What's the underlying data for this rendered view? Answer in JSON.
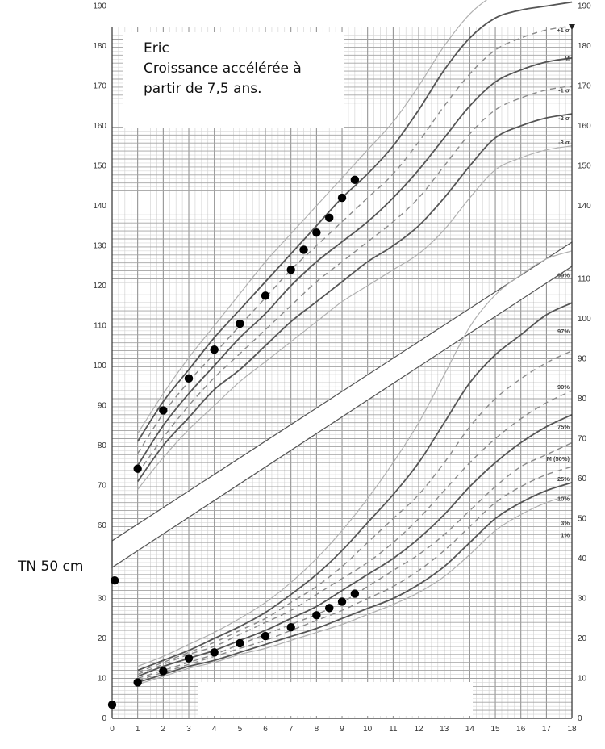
{
  "annotations": {
    "patient_name": "Eric",
    "note_line1": "Croissance accélérée à",
    "note_line2": "partir de 7,5 ans.",
    "birth_length": "TN 50 cm"
  },
  "chart_data": [
    {
      "type": "line",
      "panel": "height",
      "x_ticks": [
        "0",
        "1",
        "2",
        "3",
        "4",
        "5",
        "6",
        "7",
        "8",
        "9",
        "10",
        "11",
        "12",
        "13",
        "14",
        "15",
        "16",
        "17",
        "18"
      ],
      "y_ticks": [
        "60",
        "70",
        "80",
        "90",
        "100",
        "110",
        "120",
        "130",
        "140",
        "150",
        "160",
        "170",
        "180",
        "190"
      ],
      "ylim": [
        60,
        195
      ],
      "xlim": [
        0,
        18
      ],
      "grid": true,
      "curve_labels": [
        "+2 σ",
        "+1 σ",
        "M",
        "-1 σ",
        "-2 σ",
        "-3 σ"
      ],
      "reference_x": [
        1,
        2,
        3,
        4,
        5,
        6,
        7,
        8,
        9,
        10,
        11,
        12,
        13,
        14,
        15,
        16,
        17,
        18
      ],
      "series": [
        {
          "name": "+3 σ",
          "values": [
            83,
            93,
            102,
            110,
            118,
            126,
            133,
            140,
            147,
            154,
            161,
            170,
            180,
            188,
            193,
            196,
            198,
            199
          ]
        },
        {
          "name": "+2 σ",
          "values": [
            81,
            91,
            99,
            107,
            114,
            121,
            128,
            135,
            142,
            148,
            155,
            164,
            174,
            182,
            187,
            189,
            190,
            191
          ]
        },
        {
          "name": "+1 σ",
          "values": [
            78,
            88,
            96,
            103,
            110,
            117,
            124,
            130,
            136,
            142,
            148,
            156,
            165,
            173,
            179,
            182,
            184,
            185
          ]
        },
        {
          "name": "M",
          "values": [
            75,
            85,
            93,
            100,
            107,
            113,
            120,
            126,
            131,
            136,
            142,
            149,
            157,
            165,
            171,
            174,
            176,
            177
          ]
        },
        {
          "name": "-1 σ",
          "values": [
            73,
            82,
            90,
            97,
            103,
            109,
            115,
            121,
            126,
            131,
            136,
            142,
            150,
            158,
            164,
            167,
            169,
            170
          ]
        },
        {
          "name": "-2 σ",
          "values": [
            71,
            80,
            87,
            94,
            99,
            105,
            111,
            116,
            121,
            126,
            130,
            135,
            142,
            150,
            157,
            160,
            162,
            163
          ]
        },
        {
          "name": "-3 σ",
          "values": [
            69,
            77,
            84,
            90,
            96,
            101,
            106,
            111,
            116,
            120,
            124,
            128,
            134,
            142,
            149,
            152,
            154,
            155
          ]
        }
      ],
      "points": {
        "x": [
          1,
          2,
          3,
          4,
          5,
          6,
          7,
          7.5,
          8,
          8.5,
          9,
          9.5
        ],
        "y": [
          74.2,
          88.8,
          96.8,
          104,
          110.5,
          117.5,
          124,
          129,
          133.3,
          137,
          142,
          146.5
        ]
      }
    },
    {
      "type": "line",
      "panel": "weight",
      "x_ticks": [
        "0",
        "1",
        "2",
        "3",
        "4",
        "5",
        "6",
        "7",
        "8",
        "9",
        "10",
        "11",
        "12",
        "13",
        "14",
        "15",
        "16",
        "17",
        "18"
      ],
      "y_ticks_left": [
        "0",
        "10",
        "20",
        "30"
      ],
      "y_ticks_right": [
        "0",
        "10",
        "20",
        "30",
        "40",
        "50",
        "60",
        "70",
        "80",
        "90",
        "100",
        "110"
      ],
      "ylim": [
        0,
        120
      ],
      "xlim": [
        0,
        18
      ],
      "grid": true,
      "curve_labels": [
        "99%",
        "97%",
        "90%",
        "75%",
        "M (50%)",
        "25%",
        "10%",
        "3%",
        "1%"
      ],
      "reference_x": [
        1,
        2,
        3,
        4,
        5,
        6,
        7,
        8,
        9,
        10,
        11,
        12,
        13,
        14,
        15,
        16,
        17,
        18
      ],
      "series": [
        {
          "name": "99%",
          "values": [
            13,
            15.5,
            18.5,
            21.5,
            25,
            29,
            34,
            40,
            47,
            55,
            64,
            74,
            86,
            98,
            106,
            111,
            115,
            117
          ]
        },
        {
          "name": "97%",
          "values": [
            12,
            14.5,
            17,
            20,
            23,
            26.5,
            31,
            36,
            42,
            49,
            56,
            64,
            74,
            84,
            91,
            96,
            101,
            104
          ]
        },
        {
          "name": "90%",
          "values": [
            11.5,
            14,
            16.5,
            19,
            22,
            25,
            29,
            33,
            38,
            44,
            50,
            56,
            64,
            73,
            80,
            85,
            89,
            92
          ]
        },
        {
          "name": "75%",
          "values": [
            11,
            13.5,
            16,
            18,
            21,
            24,
            27,
            31,
            35,
            39,
            44,
            50,
            57,
            64,
            70,
            75,
            79,
            82
          ]
        },
        {
          "name": "M (50%)",
          "values": [
            10.5,
            13,
            15,
            17,
            19.5,
            22,
            25,
            28,
            32,
            36,
            40,
            45,
            51,
            58,
            64,
            69,
            73,
            76
          ]
        },
        {
          "name": "25%",
          "values": [
            10,
            12,
            14,
            16,
            18.5,
            21,
            23.5,
            26,
            29,
            33,
            37,
            41,
            46,
            52,
            58,
            63,
            66,
            69
          ]
        },
        {
          "name": "10%",
          "values": [
            9.5,
            11.5,
            13.5,
            15.5,
            17.5,
            19.5,
            22,
            24.5,
            27,
            30,
            33,
            37,
            42,
            48,
            54,
            58,
            61,
            63
          ]
        },
        {
          "name": "3%",
          "values": [
            9,
            11,
            13,
            14.5,
            16.5,
            18.5,
            20.5,
            22.5,
            25,
            27.5,
            30,
            33.5,
            38,
            44,
            50,
            54,
            57,
            59
          ]
        },
        {
          "name": "1%",
          "values": [
            8.5,
            10.5,
            12.5,
            14,
            16,
            17.5,
            19.5,
            21.5,
            23.5,
            26,
            28.5,
            31.5,
            35.5,
            41,
            47,
            51,
            54,
            56
          ]
        }
      ],
      "points": {
        "x": [
          0,
          0.1,
          1,
          2,
          3,
          4,
          5,
          6,
          7,
          8,
          8.5,
          9,
          9.5
        ],
        "y": [
          3.4,
          34.5,
          9,
          11.8,
          15,
          16.5,
          18.8,
          20.6,
          22.8,
          25.8,
          27.6,
          29.2,
          31.2
        ]
      }
    }
  ]
}
